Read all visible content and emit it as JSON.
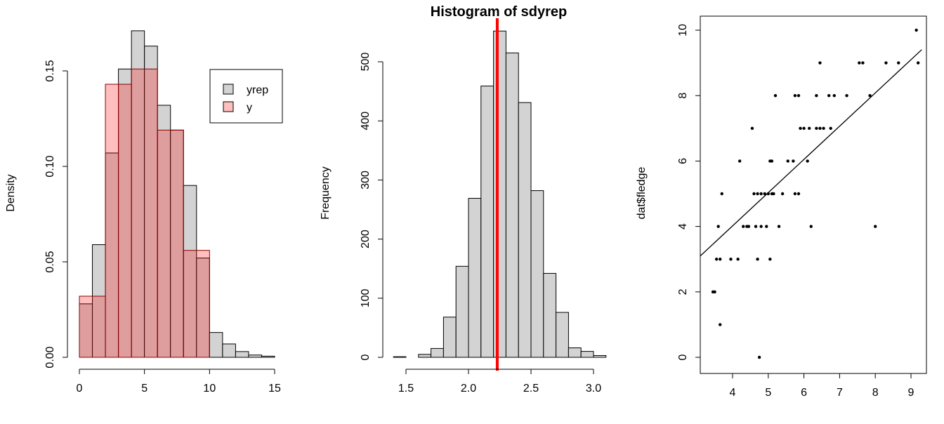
{
  "chart_data": [
    {
      "type": "bar",
      "subtype": "overlaid-histogram",
      "title": "",
      "xlabel": "",
      "ylabel": "Density",
      "xlim": [
        0,
        16
      ],
      "ylim": [
        0,
        0.17
      ],
      "x_ticks": [
        "0",
        "5",
        "10",
        "15"
      ],
      "y_ticks": [
        "0.00",
        "0.05",
        "0.10",
        "0.15"
      ],
      "legend": {
        "placement": "top-right",
        "entries": [
          "yrep",
          "y"
        ]
      },
      "series": [
        {
          "name": "yrep",
          "color": "#d3d3d3",
          "bins": [
            [
              0,
              1,
              0.028
            ],
            [
              1,
              2,
              0.059
            ],
            [
              2,
              3,
              0.107
            ],
            [
              3,
              4,
              0.151
            ],
            [
              4,
              5,
              0.171
            ],
            [
              5,
              6,
              0.163
            ],
            [
              6,
              7,
              0.132
            ],
            [
              7,
              8,
              0.119
            ],
            [
              8,
              9,
              0.09
            ],
            [
              9,
              10,
              0.052
            ],
            [
              10,
              11,
              0.013
            ],
            [
              11,
              12,
              0.007
            ],
            [
              12,
              13,
              0.003
            ],
            [
              13,
              14,
              0.0012
            ],
            [
              14,
              15,
              0.0006
            ]
          ]
        },
        {
          "name": "y",
          "color": "#ff000040",
          "bins": [
            [
              0,
              2,
              0.032
            ],
            [
              2,
              3,
              0.143
            ],
            [
              3,
              4,
              0.143
            ],
            [
              4,
              6,
              0.151
            ],
            [
              6,
              8,
              0.119
            ],
            [
              8,
              10,
              0.056
            ]
          ]
        }
      ]
    },
    {
      "type": "bar",
      "subtype": "histogram",
      "title": "Histogram of sdyrep",
      "xlabel": "",
      "ylabel": "Frequency",
      "xlim": [
        1.4,
        3.1
      ],
      "ylim": [
        0,
        560
      ],
      "x_ticks": [
        "1.5",
        "2.0",
        "2.5",
        "3.0"
      ],
      "y_ticks": [
        "0",
        "100",
        "200",
        "300",
        "400",
        "500"
      ],
      "bar_color": "#d3d3d3",
      "bins": [
        [
          1.4,
          1.5,
          1
        ],
        [
          1.5,
          1.6,
          0
        ],
        [
          1.6,
          1.7,
          5
        ],
        [
          1.7,
          1.8,
          15
        ],
        [
          1.8,
          1.9,
          68
        ],
        [
          1.9,
          2.0,
          154
        ],
        [
          2.0,
          2.1,
          269
        ],
        [
          2.1,
          2.2,
          459
        ],
        [
          2.2,
          2.3,
          552
        ],
        [
          2.3,
          2.4,
          515
        ],
        [
          2.4,
          2.5,
          431
        ],
        [
          2.5,
          2.6,
          282
        ],
        [
          2.6,
          2.7,
          142
        ],
        [
          2.7,
          2.8,
          76
        ],
        [
          2.8,
          2.9,
          16
        ],
        [
          2.9,
          3.0,
          10
        ],
        [
          3.0,
          3.1,
          3
        ]
      ],
      "vline": {
        "x": 2.23,
        "color": "#ff0000"
      }
    },
    {
      "type": "scatter",
      "title": "",
      "xlabel": "",
      "ylabel": "dat$fledge",
      "xlim": [
        3.1,
        9.3
      ],
      "ylim": [
        -0.6,
        10.5
      ],
      "x_ticks": [
        "4",
        "5",
        "6",
        "7",
        "8",
        "9"
      ],
      "y_ticks": [
        "0",
        "2",
        "4",
        "6",
        "8",
        "10"
      ],
      "points": [
        [
          3.45,
          2
        ],
        [
          3.5,
          2
        ],
        [
          3.55,
          3
        ],
        [
          3.6,
          4
        ],
        [
          3.65,
          3
        ],
        [
          3.65,
          1
        ],
        [
          3.7,
          5
        ],
        [
          3.95,
          3
        ],
        [
          4.15,
          3
        ],
        [
          4.2,
          6
        ],
        [
          4.3,
          4
        ],
        [
          4.4,
          4
        ],
        [
          4.45,
          4
        ],
        [
          4.55,
          7
        ],
        [
          4.6,
          5
        ],
        [
          4.65,
          4
        ],
        [
          4.7,
          3
        ],
        [
          4.7,
          5
        ],
        [
          4.75,
          0
        ],
        [
          4.8,
          5
        ],
        [
          4.8,
          4
        ],
        [
          4.9,
          5
        ],
        [
          4.95,
          4
        ],
        [
          5.0,
          5
        ],
        [
          5.05,
          3
        ],
        [
          5.05,
          6
        ],
        [
          5.1,
          6
        ],
        [
          5.1,
          5
        ],
        [
          5.15,
          5
        ],
        [
          5.2,
          8
        ],
        [
          5.3,
          4
        ],
        [
          5.4,
          5
        ],
        [
          5.55,
          6
        ],
        [
          5.7,
          6
        ],
        [
          5.75,
          8
        ],
        [
          5.75,
          5
        ],
        [
          5.85,
          5
        ],
        [
          5.85,
          8
        ],
        [
          5.9,
          7
        ],
        [
          6.0,
          7
        ],
        [
          6.1,
          6
        ],
        [
          6.15,
          7
        ],
        [
          6.2,
          4
        ],
        [
          6.35,
          7
        ],
        [
          6.35,
          8
        ],
        [
          6.45,
          9
        ],
        [
          6.45,
          7
        ],
        [
          6.55,
          7
        ],
        [
          6.7,
          8
        ],
        [
          6.75,
          7
        ],
        [
          6.85,
          8
        ],
        [
          7.2,
          8
        ],
        [
          7.55,
          9
        ],
        [
          7.65,
          9
        ],
        [
          7.85,
          8
        ],
        [
          8.0,
          4
        ],
        [
          8.3,
          9
        ],
        [
          8.65,
          9
        ],
        [
          9.15,
          10
        ],
        [
          9.2,
          9
        ]
      ],
      "regression_line": {
        "intercept": -0.046,
        "slope": 1.016
      }
    }
  ]
}
